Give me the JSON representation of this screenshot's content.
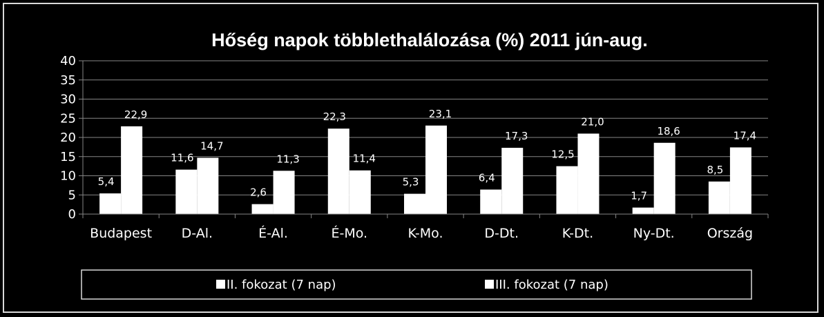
{
  "chart_data": {
    "type": "bar",
    "title": "Hőség napok többlethalálozása (%) 2011 jún-aug.",
    "xlabel": "",
    "ylabel": "",
    "ylim": [
      0,
      40
    ],
    "yticks": [
      "0",
      "5",
      "10",
      "15",
      "20",
      "25",
      "30",
      "35",
      "40"
    ],
    "grid": true,
    "legend_position": "bottom",
    "categories": [
      "Budapest",
      "D-Al.",
      "É-Al.",
      "É-Mo.",
      "K-Mo.",
      "D-Dt.",
      "K-Dt.",
      "Ny-Dt.",
      "Ország"
    ],
    "series": [
      {
        "name": "II. fokozat (7 nap)",
        "values": [
          5.4,
          11.6,
          2.6,
          22.3,
          5.3,
          6.4,
          12.5,
          1.7,
          8.5
        ],
        "labels": [
          "5,4",
          "11,6",
          "2,6",
          "22,3",
          "5,3",
          "6,4",
          "12,5",
          "1,7",
          "8,5"
        ]
      },
      {
        "name": "III. fokozat (7 nap)",
        "values": [
          22.9,
          14.7,
          11.3,
          11.4,
          23.1,
          17.3,
          21.0,
          18.6,
          17.4
        ],
        "labels": [
          "22,9",
          "14,7",
          "11,3",
          "11,4",
          "23,1",
          "17,3",
          "21,0",
          "18,6",
          "17,4"
        ]
      }
    ],
    "colors": {
      "background": "#000000",
      "bars": "#ffffff",
      "grid": "#868686",
      "text": "#ffffff"
    }
  }
}
